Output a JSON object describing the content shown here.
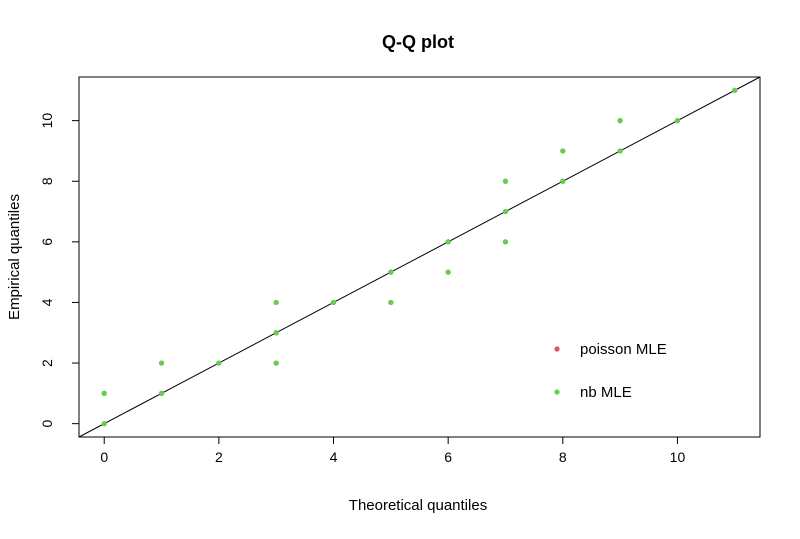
{
  "chart_data": {
    "type": "scatter",
    "title": "Q-Q plot",
    "xlabel": "Theoretical quantiles",
    "ylabel": "Empirical quantiles",
    "xlim": [
      -0.44,
      11.44
    ],
    "ylim": [
      -0.44,
      11.44
    ],
    "xticks": [
      0,
      2,
      4,
      6,
      8,
      10
    ],
    "yticks": [
      0,
      2,
      4,
      6,
      8,
      10
    ],
    "grid": false,
    "legend_position": "bottom-right",
    "reference_line": {
      "intercept": 0,
      "slope": 1,
      "color": "#000000"
    },
    "series": [
      {
        "name": "poisson MLE",
        "color": "#DF536B",
        "points": [
          [
            0,
            0
          ],
          [
            0,
            1
          ],
          [
            1,
            1
          ],
          [
            1,
            2
          ],
          [
            2,
            2
          ],
          [
            3,
            2
          ],
          [
            3,
            3
          ],
          [
            3,
            4
          ],
          [
            4,
            4
          ],
          [
            5,
            4
          ],
          [
            5,
            5
          ],
          [
            6,
            5
          ],
          [
            6,
            6
          ],
          [
            7,
            6
          ],
          [
            7,
            7
          ],
          [
            7,
            8
          ],
          [
            8,
            8
          ],
          [
            8,
            9
          ],
          [
            9,
            9
          ],
          [
            9,
            10
          ],
          [
            10,
            10
          ],
          [
            11,
            11
          ]
        ]
      },
      {
        "name": "nb MLE",
        "color": "#61D04F",
        "points": [
          [
            0,
            0
          ],
          [
            0,
            1
          ],
          [
            1,
            1
          ],
          [
            1,
            2
          ],
          [
            2,
            2
          ],
          [
            3,
            2
          ],
          [
            3,
            3
          ],
          [
            3,
            4
          ],
          [
            4,
            4
          ],
          [
            5,
            4
          ],
          [
            5,
            5
          ],
          [
            6,
            5
          ],
          [
            6,
            6
          ],
          [
            7,
            6
          ],
          [
            7,
            7
          ],
          [
            7,
            8
          ],
          [
            8,
            8
          ],
          [
            8,
            9
          ],
          [
            9,
            9
          ],
          [
            9,
            10
          ],
          [
            10,
            10
          ],
          [
            11,
            11
          ]
        ]
      }
    ]
  }
}
